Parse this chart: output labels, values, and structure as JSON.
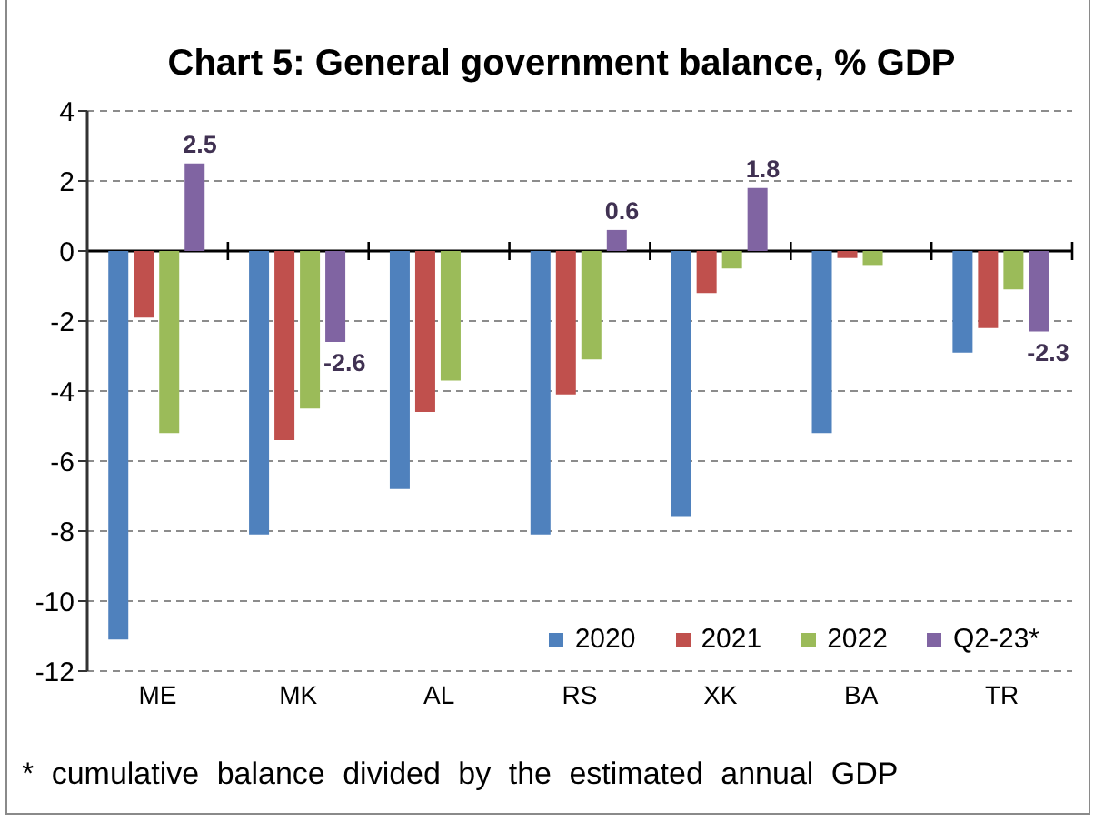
{
  "chart_data": {
    "type": "bar",
    "title": "Chart 5: General government balance, % GDP",
    "categories": [
      "ME",
      "MK",
      "AL",
      "RS",
      "XK",
      "BA",
      "TR"
    ],
    "series": [
      {
        "name": "2020",
        "color": "#4f81bd",
        "values": [
          -11.1,
          -8.1,
          -6.8,
          -8.1,
          -7.6,
          -5.2,
          -2.9
        ]
      },
      {
        "name": "2021",
        "color": "#c0504d",
        "values": [
          -1.9,
          -5.4,
          -4.6,
          -4.1,
          -1.2,
          -0.2,
          -2.2
        ]
      },
      {
        "name": "2022",
        "color": "#9bbb59",
        "values": [
          -5.2,
          -4.5,
          -3.7,
          -3.1,
          -0.5,
          -0.4,
          -1.1
        ]
      },
      {
        "name": "Q2-23*",
        "color": "#8064a2",
        "values": [
          2.5,
          -2.6,
          null,
          0.6,
          1.8,
          null,
          -2.3
        ],
        "value_labels": [
          "2.5",
          "-2.6",
          null,
          "0.6",
          "1.8",
          null,
          "-2.3"
        ]
      }
    ],
    "ylim": [
      -12,
      4
    ],
    "yticks": [
      -12,
      -10,
      -8,
      -6,
      -4,
      -2,
      0,
      2,
      4
    ],
    "grid": "y",
    "legend": "bottom right",
    "annotations": [
      "* cumulative balance divided by the estimated annual GDP"
    ]
  }
}
